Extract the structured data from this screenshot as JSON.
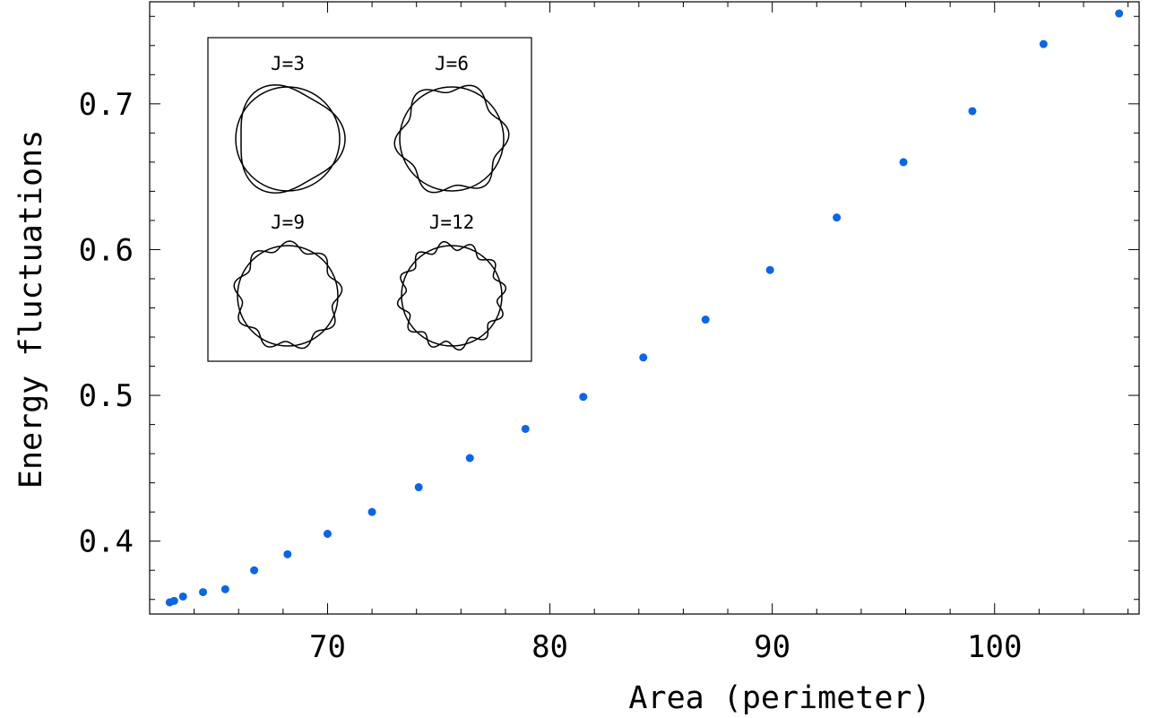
{
  "chart_data": {
    "type": "scatter",
    "title": "",
    "xlabel": "Area (perimeter)",
    "ylabel": "Energy fluctuations",
    "xlim": [
      62,
      106.5
    ],
    "ylim": [
      0.35,
      0.77
    ],
    "x_ticks": [
      70,
      80,
      90,
      100
    ],
    "y_ticks": [
      0.4,
      0.5,
      0.6,
      0.7
    ],
    "x_tick_labels": [
      "70",
      "80",
      "90",
      "100"
    ],
    "y_tick_labels": [
      "0.4",
      "0.5",
      "0.6",
      "0.7"
    ],
    "grid": false,
    "legend": "none",
    "point_color": "#0a66e8",
    "series": [
      {
        "points": [
          [
            62.9,
            0.358
          ],
          [
            63.1,
            0.359
          ],
          [
            63.5,
            0.362
          ],
          [
            64.4,
            0.365
          ],
          [
            65.4,
            0.367
          ],
          [
            66.7,
            0.38
          ],
          [
            68.2,
            0.391
          ],
          [
            70.0,
            0.405
          ],
          [
            72.0,
            0.42
          ],
          [
            74.1,
            0.437
          ],
          [
            76.4,
            0.457
          ],
          [
            78.9,
            0.477
          ],
          [
            81.5,
            0.499
          ],
          [
            84.2,
            0.526
          ],
          [
            87.0,
            0.552
          ],
          [
            89.9,
            0.586
          ],
          [
            92.9,
            0.622
          ],
          [
            95.9,
            0.66
          ],
          [
            99.0,
            0.695
          ],
          [
            102.2,
            0.741
          ],
          [
            105.6,
            0.762
          ]
        ]
      }
    ],
    "inset": {
      "shapes": [
        {
          "label": "J=3",
          "J": 3
        },
        {
          "label": "J=6",
          "J": 6
        },
        {
          "label": "J=9",
          "J": 9
        },
        {
          "label": "J=12",
          "J": 12
        }
      ]
    }
  }
}
